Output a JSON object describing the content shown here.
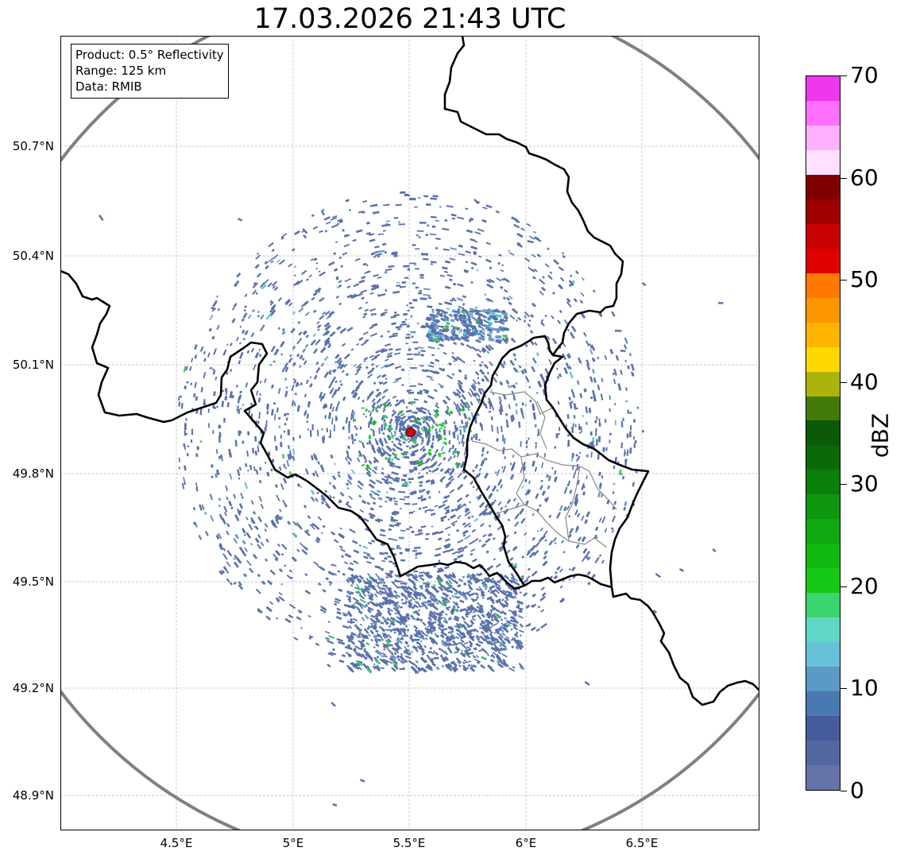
{
  "title": "17.03.2026 21:43 UTC",
  "info": {
    "product": "Product: 0.5° Reflectivity",
    "range": "Range: 125 km",
    "source": "Data: RMIB"
  },
  "latitude_labels": [
    "50.7°N",
    "50.4°N",
    "50.1°N",
    "49.8°N",
    "49.5°N",
    "49.2°N",
    "48.9°N"
  ],
  "longitude_labels": [
    "4.5°E",
    "5°E",
    "5.5°E",
    "6°E",
    "6.5°E"
  ],
  "map_extent": {
    "lon_min": 4.0,
    "lon_max": 7.0,
    "lat_min": 48.8,
    "lat_max": 51.0
  },
  "radar_site": {
    "lon": 5.505,
    "lat": 49.914
  },
  "range_km": 125,
  "colorbar": {
    "label": "dBZ",
    "tick_labels": [
      "0",
      "10",
      "20",
      "30",
      "40",
      "50",
      "60",
      "70"
    ],
    "min": 0,
    "max": 70,
    "step": 2.5,
    "colors": [
      "#6474a8",
      "#5468a0",
      "#465c9c",
      "#4a78b0",
      "#5a9ac4",
      "#66c0d8",
      "#5ed8c4",
      "#3cd46c",
      "#14c814",
      "#10b810",
      "#10a810",
      "#0e960e",
      "#0a800a",
      "#0a6a0a",
      "#0a5a0a",
      "#447a0a",
      "#aab40a",
      "#ffd800",
      "#ffb400",
      "#ff9600",
      "#ff7800",
      "#e00000",
      "#c80000",
      "#a00000",
      "#800000",
      "#ffe0ff",
      "#ffb0ff",
      "#ff70ff",
      "#ee38ee"
    ]
  },
  "echo_colors": {
    "weak": "#5a72aa",
    "light": "#6a9ad0",
    "moderate": "#5ec8d0",
    "green": "#3cc85a",
    "bright": "#14c814"
  },
  "border_color": "#000000",
  "admin_color": "#888888",
  "range_ring_color": "#808080",
  "site_color": "#e00000"
}
